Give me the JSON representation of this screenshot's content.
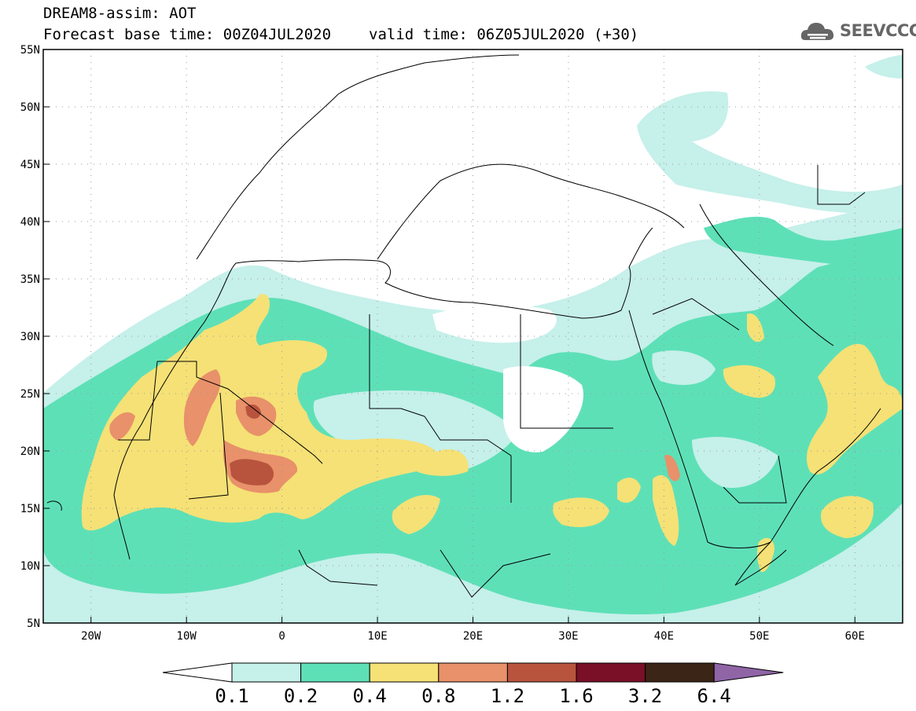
{
  "header": {
    "title": "DREAM8-assim: AOT",
    "base_time": "Forecast base time: 00Z04JUL2020",
    "valid_time": "valid time: 06Z05JUL2020 (+30)"
  },
  "logo": {
    "text": "SEEVCCC",
    "color": "#666666"
  },
  "axes": {
    "lon_range": [
      -25,
      65
    ],
    "lat_range": [
      5,
      55
    ],
    "lon_labels": [
      {
        "lon": -20,
        "label": "20W"
      },
      {
        "lon": -10,
        "label": "10W"
      },
      {
        "lon": 0,
        "label": "0"
      },
      {
        "lon": 10,
        "label": "10E"
      },
      {
        "lon": 20,
        "label": "20E"
      },
      {
        "lon": 30,
        "label": "30E"
      },
      {
        "lon": 40,
        "label": "40E"
      },
      {
        "lon": 50,
        "label": "50E"
      },
      {
        "lon": 60,
        "label": "60E"
      }
    ],
    "lat_labels": [
      {
        "lat": 55,
        "label": "55N"
      },
      {
        "lat": 50,
        "label": "50N"
      },
      {
        "lat": 45,
        "label": "45N"
      },
      {
        "lat": 40,
        "label": "40N"
      },
      {
        "lat": 35,
        "label": "35N"
      },
      {
        "lat": 30,
        "label": "30N"
      },
      {
        "lat": 25,
        "label": "25N"
      },
      {
        "lat": 20,
        "label": "20N"
      },
      {
        "lat": 15,
        "label": "15N"
      },
      {
        "lat": 10,
        "label": "10N"
      },
      {
        "lat": 5,
        "label": "5N"
      }
    ],
    "grid": "dotted"
  },
  "colorbar": {
    "levels": [
      "0.1",
      "0.2",
      "0.4",
      "0.8",
      "1.2",
      "1.6",
      "3.2",
      "6.4"
    ],
    "colors": [
      "#c6f0ea",
      "#5ee0b7",
      "#f5e176",
      "#e8916a",
      "#b8543e",
      "#7a0f28",
      "#3b2516",
      "#8f65a6"
    ],
    "under_color": "#ffffff"
  }
}
